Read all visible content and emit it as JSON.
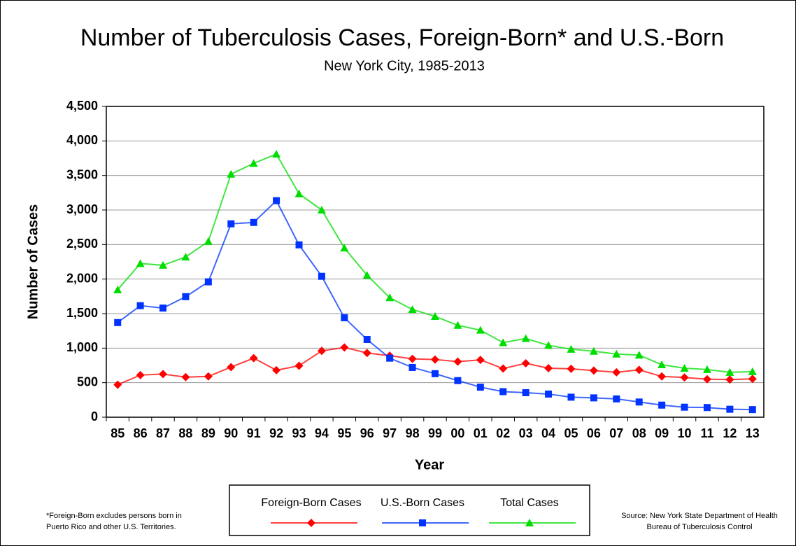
{
  "chart_data": {
    "type": "line",
    "title": "Number of Tuberculosis Cases, Foreign-Born* and U.S.-Born",
    "subtitle": "New York City, 1985-2013",
    "x_label": "Year",
    "y_label": "Number of Cases",
    "categories": [
      "85",
      "86",
      "87",
      "88",
      "89",
      "90",
      "91",
      "92",
      "93",
      "94",
      "95",
      "96",
      "97",
      "98",
      "99",
      "00",
      "01",
      "02",
      "03",
      "04",
      "05",
      "06",
      "07",
      "08",
      "09",
      "10",
      "11",
      "12",
      "13"
    ],
    "series": [
      {
        "name": "Foreign-Born Cases",
        "color": "#ff0000",
        "marker": "diamond",
        "values": [
          470,
          610,
          625,
          580,
          590,
          725,
          855,
          680,
          745,
          960,
          1010,
          930,
          890,
          845,
          835,
          805,
          830,
          705,
          780,
          710,
          700,
          675,
          650,
          685,
          590,
          575,
          550,
          545,
          555
        ]
      },
      {
        "name": "U.S.-Born Cases",
        "color": "#0033ff",
        "marker": "square",
        "values": [
          1370,
          1615,
          1580,
          1745,
          1960,
          2800,
          2820,
          3135,
          2495,
          2040,
          1440,
          1125,
          855,
          720,
          630,
          530,
          435,
          370,
          355,
          335,
          290,
          280,
          265,
          220,
          175,
          145,
          140,
          115,
          110
        ]
      },
      {
        "name": "Total Cases",
        "color": "#00dd00",
        "marker": "triangle",
        "values": [
          1845,
          2225,
          2200,
          2320,
          2545,
          3520,
          3675,
          3810,
          3235,
          3000,
          2450,
          2055,
          1730,
          1560,
          1460,
          1330,
          1260,
          1080,
          1140,
          1040,
          985,
          955,
          915,
          900,
          760,
          710,
          690,
          650,
          660
        ]
      }
    ],
    "ylim": [
      0,
      4500
    ],
    "yticks": [
      0,
      500,
      {
        "value": 1000,
        "label": "1,000"
      },
      {
        "value": 1500,
        "label": "1,500"
      },
      {
        "value": 2000,
        "label": "2,000"
      },
      {
        "value": 2500,
        "label": "2,500"
      },
      {
        "value": 3000,
        "label": "3,000"
      },
      {
        "value": 3500,
        "label": "3,500"
      },
      {
        "value": 4000,
        "label": "4,000"
      },
      {
        "value": 4500,
        "label": "4,500"
      }
    ],
    "grid": true,
    "legend": "bottom",
    "footnote": [
      "*Foreign-Born excludes persons born in",
      "Puerto Rico and other U.S. Territories."
    ],
    "source": [
      "Source: New York State Department of Health",
      "Bureau of Tuberculosis Control"
    ]
  }
}
